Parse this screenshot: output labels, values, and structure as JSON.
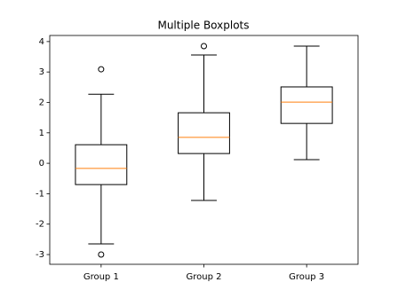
{
  "chart_data": {
    "type": "boxplot",
    "title": "Multiple Boxplots",
    "categories": [
      "Group 1",
      "Group 2",
      "Group 3"
    ],
    "boxes": [
      {
        "whislo": -2.65,
        "q1": -0.7,
        "med": -0.17,
        "q3": 0.61,
        "whishi": 2.27,
        "fliers": [
          3.09,
          -3.0
        ]
      },
      {
        "whislo": -1.22,
        "q1": 0.32,
        "med": 0.85,
        "q3": 1.66,
        "whishi": 3.56,
        "fliers": [
          3.85
        ]
      },
      {
        "whislo": 0.12,
        "q1": 1.31,
        "med": 2.01,
        "q3": 2.51,
        "whishi": 3.85,
        "fliers": []
      }
    ],
    "color": "#000000",
    "median_color": "#ff7f0e",
    "ylim": [
      -3.32,
      4.2
    ],
    "yticks": [
      -3,
      -2,
      -1,
      0,
      1,
      2,
      3,
      4
    ],
    "grid": false
  }
}
